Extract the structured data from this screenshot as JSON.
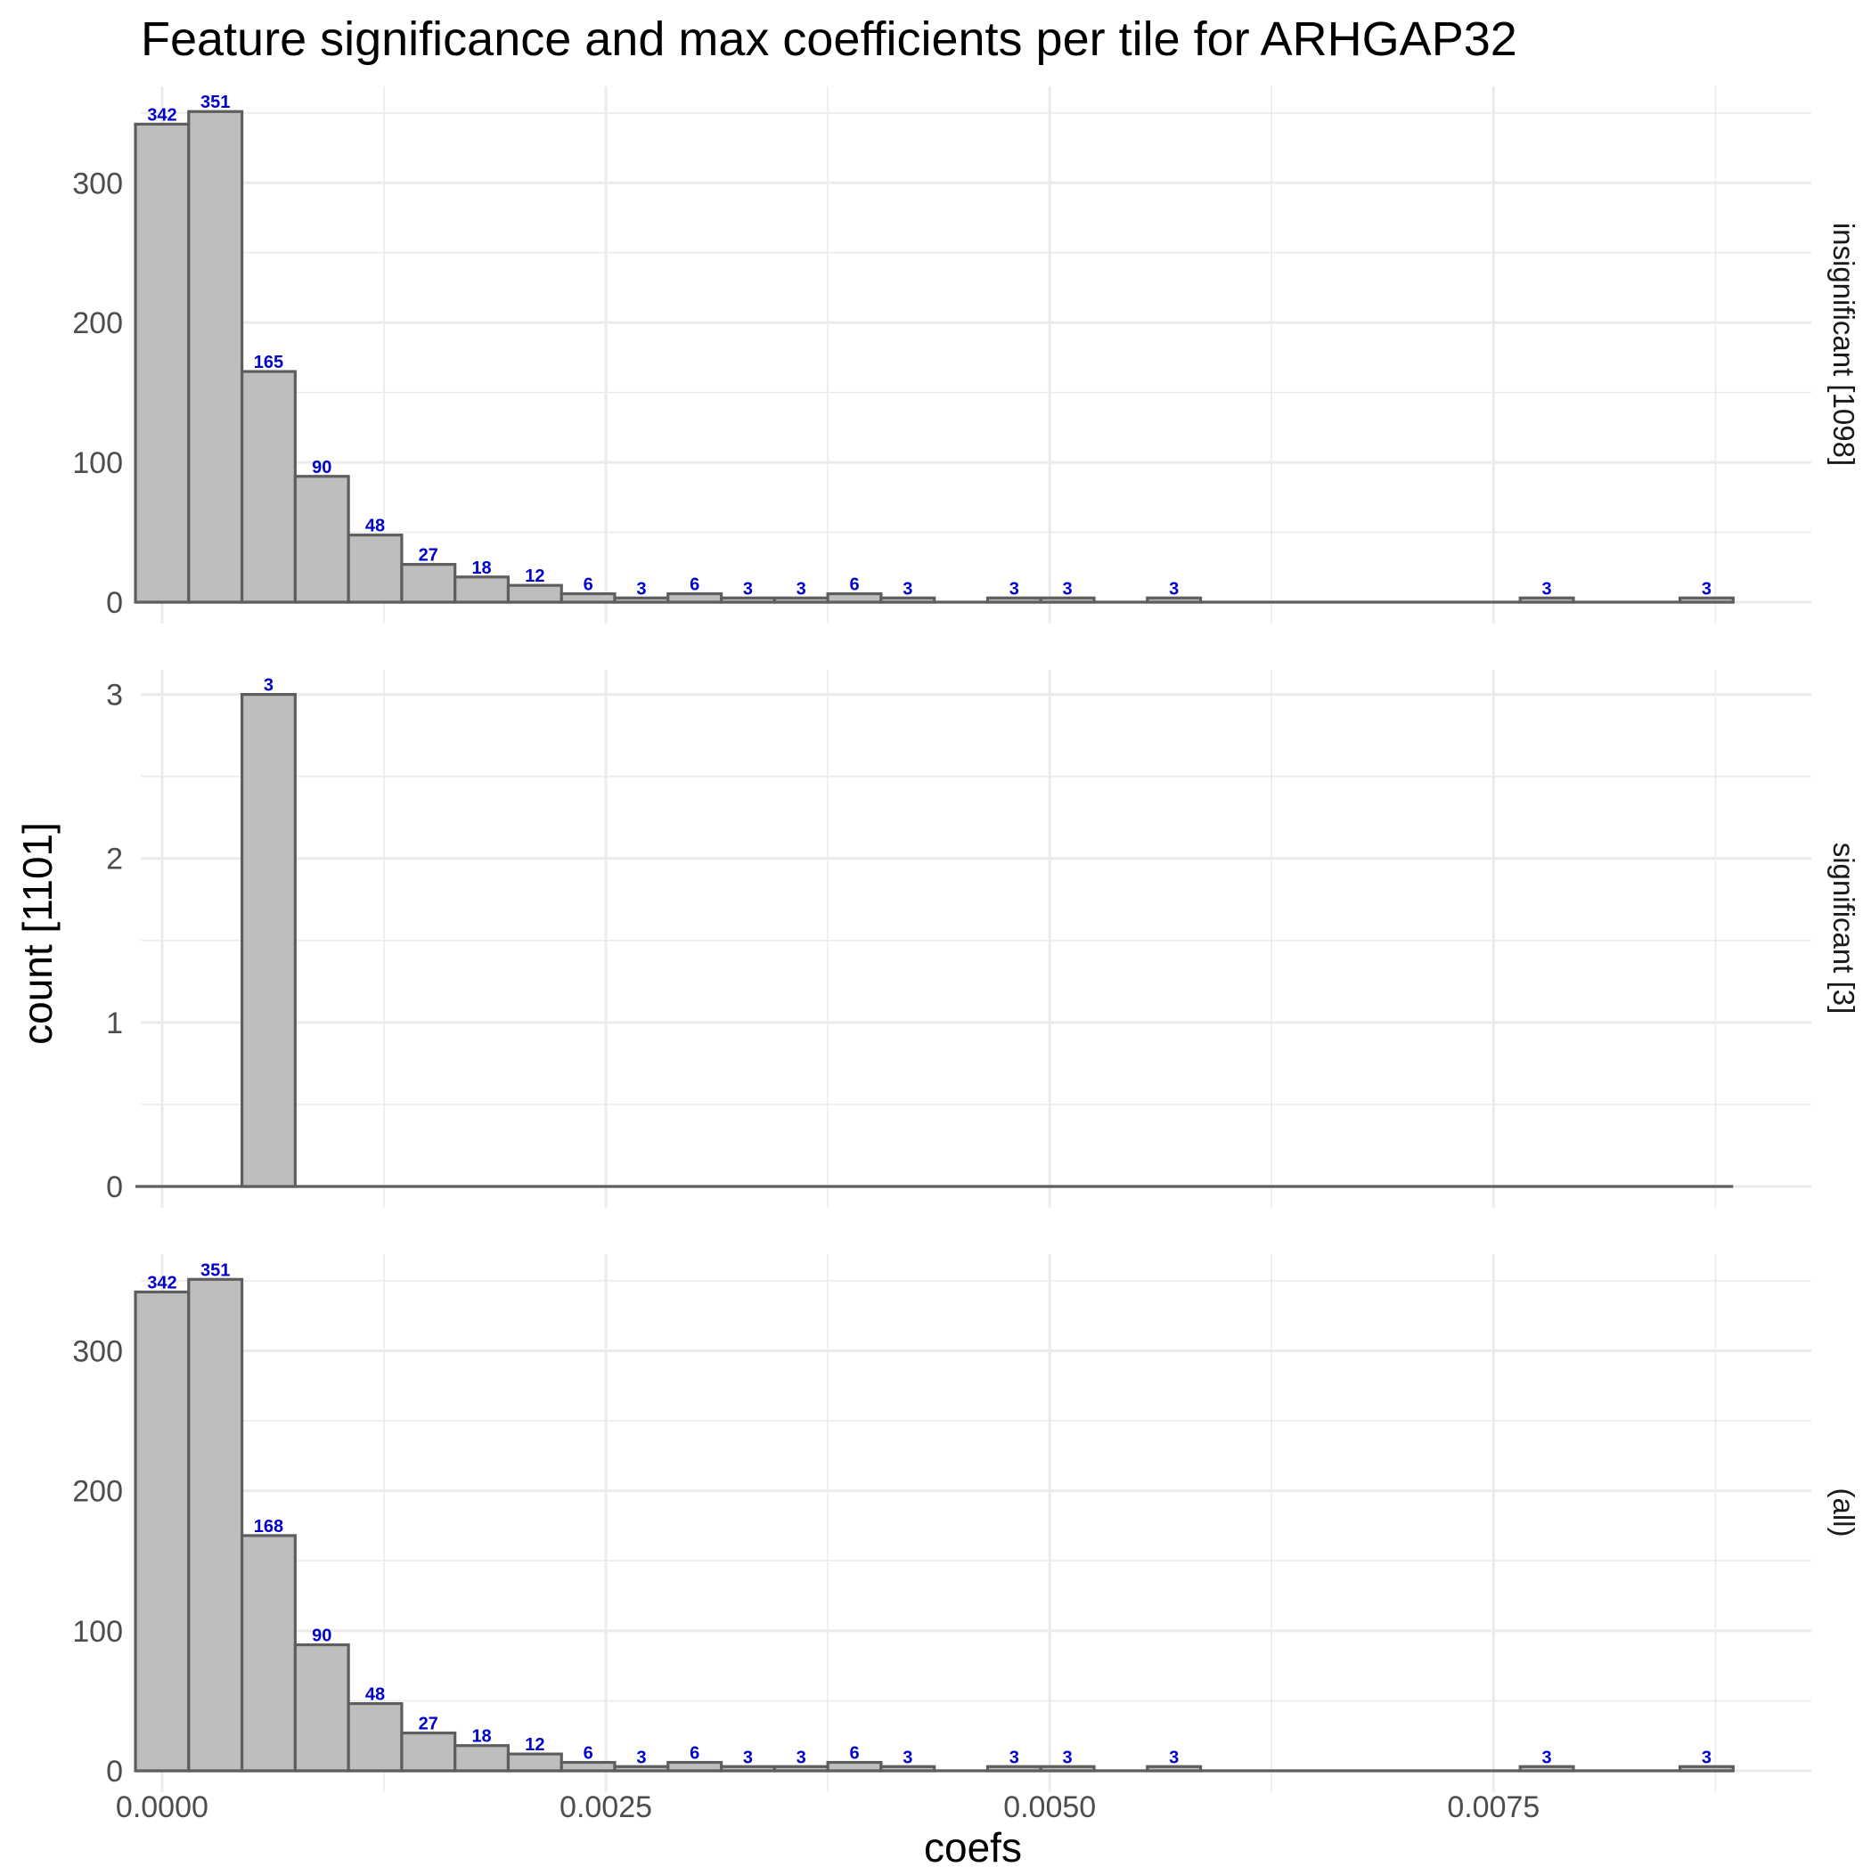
{
  "chart_data": {
    "type": "bar",
    "title": "Feature significance and max coefficients per tile for ARHGAP32",
    "xlabel": "coefs",
    "ylabel": "count [1101]",
    "x_ticks": [
      "0.0000",
      "0.0025",
      "0.0050",
      "0.0075"
    ],
    "x_tick_values": [
      0,
      0.0025,
      0.005,
      0.0075
    ],
    "xlim": [
      -0.00012,
      0.00929
    ],
    "bin_width": 0.0003,
    "bin_centers": [
      0.0,
      0.0003,
      0.0006,
      0.0009,
      0.0012,
      0.0015,
      0.0018,
      0.0021,
      0.0024,
      0.0027,
      0.003,
      0.0033,
      0.0036,
      0.0039,
      0.0042,
      0.0045,
      0.0048,
      0.0051,
      0.0054,
      0.0057,
      0.006,
      0.0063,
      0.0066,
      0.0069,
      0.0072,
      0.0075,
      0.0078,
      0.0081,
      0.0084,
      0.0087
    ],
    "grid": true,
    "facets": [
      {
        "label": "insignificant [1098]",
        "ylim": [
          0,
          369
        ],
        "y_ticks": [
          "0",
          "100",
          "200",
          "300"
        ],
        "y_tick_values": [
          0,
          100,
          200,
          300
        ],
        "values": [
          342,
          351,
          165,
          90,
          48,
          27,
          18,
          12,
          6,
          3,
          6,
          3,
          3,
          6,
          3,
          0,
          3,
          3,
          0,
          3,
          0,
          0,
          0,
          0,
          0,
          0,
          3,
          0,
          0,
          3
        ]
      },
      {
        "label": "significant [3]",
        "ylim": [
          0,
          3.15
        ],
        "y_ticks": [
          "0",
          "1",
          "2",
          "3"
        ],
        "y_tick_values": [
          0,
          1,
          2,
          3
        ],
        "values": [
          0,
          0,
          3,
          0,
          0,
          0,
          0,
          0,
          0,
          0,
          0,
          0,
          0,
          0,
          0,
          0,
          0,
          0,
          0,
          0,
          0,
          0,
          0,
          0,
          0,
          0,
          0,
          0,
          0,
          0
        ]
      },
      {
        "label": "(all)",
        "ylim": [
          0,
          369
        ],
        "y_ticks": [
          "0",
          "100",
          "200",
          "300"
        ],
        "y_tick_values": [
          0,
          100,
          200,
          300
        ],
        "values": [
          342,
          351,
          168,
          90,
          48,
          27,
          18,
          12,
          6,
          3,
          6,
          3,
          3,
          6,
          3,
          0,
          3,
          3,
          0,
          3,
          0,
          0,
          0,
          0,
          0,
          0,
          3,
          0,
          0,
          3
        ]
      }
    ],
    "colors": {
      "bar_fill": "#bebebe",
      "bar_outline": "#5e5e5e",
      "label": "#0000cc",
      "grid": "#ebebeb"
    }
  }
}
